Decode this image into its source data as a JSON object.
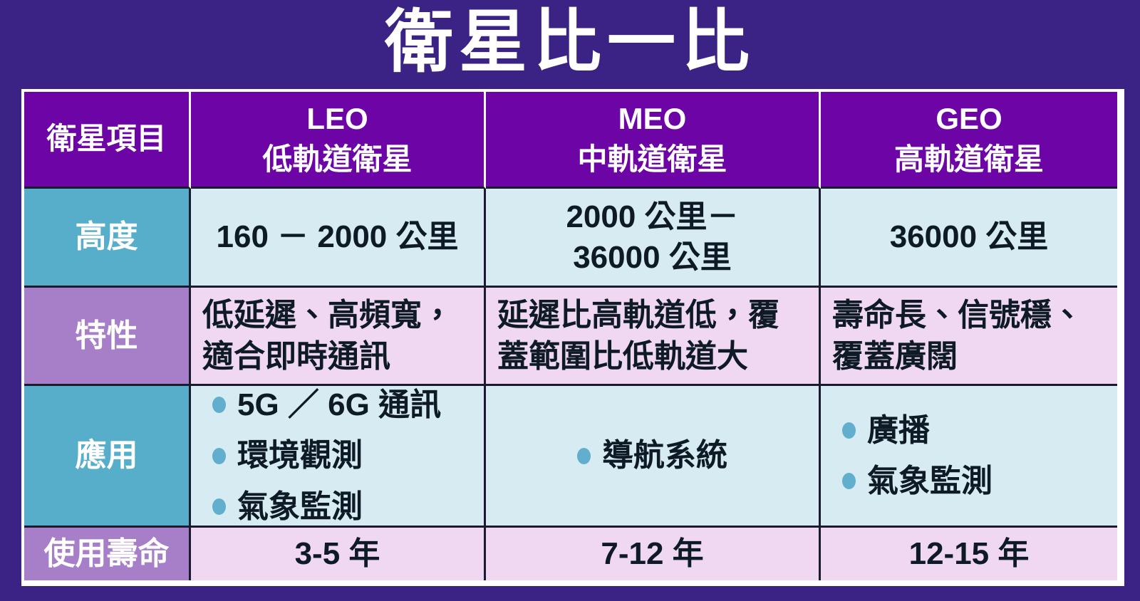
{
  "title": "衛星比一比",
  "colors": {
    "page_background": "#3B2386",
    "header_purple": "#6C04A6",
    "label_teal": "#57AECB",
    "label_purple": "#A77FC9",
    "cell_cyan": "#D7EBF2",
    "cell_pink": "#F0D8F3",
    "bullet_teal": "#62AECD",
    "text_dark": "#0E1B26",
    "text_white": "#FFFFFF"
  },
  "table": {
    "corner_label": "衛星項目",
    "columns": [
      {
        "abbr": "LEO",
        "name": "低軌道衛星"
      },
      {
        "abbr": "MEO",
        "name": "中軌道衛星"
      },
      {
        "abbr": "GEO",
        "name": "高軌道衛星"
      }
    ],
    "rows": [
      {
        "label": "高度",
        "cells": [
          {
            "text": "160 － 2000 公里"
          },
          {
            "text": "2000 公里－\n36000 公里"
          },
          {
            "text": "36000 公里"
          }
        ]
      },
      {
        "label": "特性",
        "cells": [
          {
            "text": "低延遲、高頻寬，\n適合即時通訊"
          },
          {
            "text": "延遲比高軌道低，覆\n蓋範圍比低軌道大"
          },
          {
            "text": "壽命長、信號穩、\n覆蓋廣闊"
          }
        ]
      },
      {
        "label": "應用",
        "cells": [
          {
            "items": [
              "5G ／ 6G 通訊",
              "環境觀測",
              "氣象監測"
            ]
          },
          {
            "items": [
              "導航系統"
            ]
          },
          {
            "items": [
              "廣播",
              "氣象監測"
            ]
          }
        ]
      },
      {
        "label": "使用壽命",
        "cells": [
          {
            "text": "3-5 年"
          },
          {
            "text": "7-12 年"
          },
          {
            "text": "12-15 年"
          }
        ]
      }
    ]
  }
}
